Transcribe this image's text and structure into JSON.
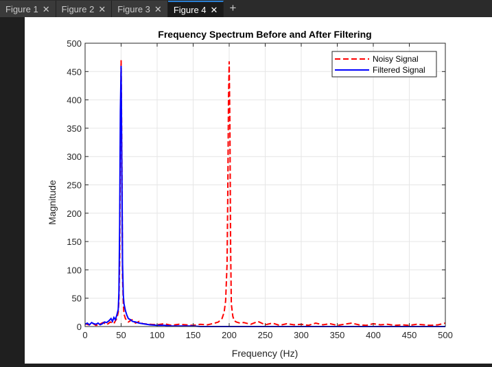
{
  "tabs": [
    {
      "label": "Figure 1",
      "active": false
    },
    {
      "label": "Figure 2",
      "active": false
    },
    {
      "label": "Figure 3",
      "active": false
    },
    {
      "label": "Figure 4",
      "active": true
    }
  ],
  "icons": {
    "close": "close-icon",
    "add": "plus-icon"
  },
  "chart_data": {
    "type": "line",
    "title": "Frequency Spectrum Before and After Filtering",
    "xlabel": "Frequency (Hz)",
    "ylabel": "Magnitude",
    "xlim": [
      0,
      500
    ],
    "ylim": [
      0,
      500
    ],
    "xticks": [
      0,
      50,
      100,
      150,
      200,
      250,
      300,
      350,
      400,
      450,
      500
    ],
    "yticks": [
      0,
      50,
      100,
      150,
      200,
      250,
      300,
      350,
      400,
      450,
      500
    ],
    "grid": true,
    "legend_position": "top-right",
    "series": [
      {
        "name": "Noisy Signal",
        "color": "#ff0000",
        "style": "dashed",
        "x": [
          0,
          5,
          10,
          15,
          20,
          25,
          30,
          35,
          40,
          42,
          44,
          46,
          47,
          48,
          49,
          50,
          51,
          52,
          53,
          54,
          56,
          58,
          60,
          65,
          70,
          75,
          80,
          90,
          100,
          110,
          120,
          130,
          140,
          150,
          160,
          170,
          180,
          185,
          190,
          193,
          195,
          197,
          198,
          199,
          200,
          201,
          202,
          203,
          205,
          207,
          210,
          215,
          220,
          230,
          240,
          250,
          260,
          270,
          280,
          290,
          300,
          310,
          320,
          330,
          340,
          350,
          360,
          370,
          380,
          390,
          400,
          410,
          420,
          430,
          440,
          450,
          460,
          470,
          480,
          490,
          500
        ],
        "y": [
          5,
          3,
          6,
          2,
          4,
          7,
          3,
          8,
          5,
          10,
          14,
          25,
          45,
          120,
          320,
          470,
          300,
          90,
          40,
          22,
          14,
          10,
          8,
          12,
          6,
          9,
          5,
          4,
          3,
          5,
          2,
          4,
          3,
          2,
          4,
          3,
          6,
          8,
          14,
          25,
          45,
          110,
          230,
          400,
          468,
          350,
          140,
          40,
          18,
          10,
          8,
          6,
          7,
          4,
          9,
          3,
          6,
          2,
          5,
          3,
          4,
          2,
          6,
          3,
          5,
          2,
          4,
          6,
          3,
          2,
          5,
          3,
          4,
          2,
          3,
          2,
          4,
          3,
          2,
          3,
          6
        ]
      },
      {
        "name": "Filtered Signal",
        "color": "#0000ff",
        "style": "solid",
        "x": [
          0,
          3,
          6,
          9,
          12,
          15,
          18,
          21,
          24,
          27,
          30,
          33,
          36,
          38,
          40,
          42,
          44,
          46,
          47,
          48,
          49,
          50,
          51,
          52,
          53,
          54,
          56,
          58,
          60,
          63,
          66,
          70,
          75,
          80,
          90,
          100,
          110,
          120,
          130,
          140,
          150,
          160,
          180,
          200,
          250,
          300,
          350,
          400,
          450,
          500
        ],
        "y": [
          4,
          6,
          3,
          7,
          5,
          4,
          6,
          3,
          5,
          8,
          7,
          10,
          14,
          9,
          16,
          12,
          20,
          30,
          60,
          180,
          380,
          460,
          280,
          110,
          55,
          40,
          28,
          20,
          14,
          12,
          9,
          8,
          6,
          5,
          3,
          2,
          2,
          1,
          1,
          1,
          1,
          0,
          0,
          0,
          0,
          0,
          0,
          0,
          0,
          0
        ]
      }
    ]
  }
}
